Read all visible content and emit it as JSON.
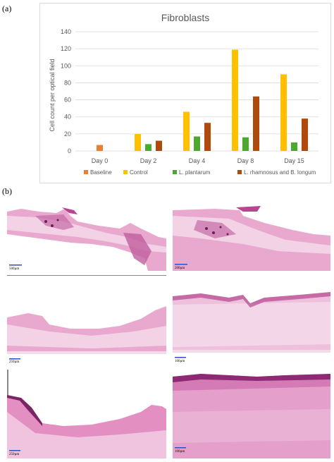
{
  "figure": {
    "panel_a_label": "(a)",
    "panel_b_label": "(b)"
  },
  "chart_data": {
    "type": "bar",
    "title": "Fibroblasts",
    "xlabel": "",
    "ylabel": "Cell count per optical field",
    "categories": [
      "Day 0",
      "Day 2",
      "Day 4",
      "Day 8",
      "Day 15"
    ],
    "ylim": [
      0,
      140
    ],
    "yticks": [
      0,
      20,
      40,
      60,
      80,
      100,
      120,
      140
    ],
    "grid": true,
    "legend_position": "bottom",
    "series": [
      {
        "name": "Baseline",
        "color": "#ed7d31",
        "values": [
          7,
          null,
          null,
          null,
          null
        ]
      },
      {
        "name": "Control",
        "color": "#ffc000",
        "values": [
          null,
          20,
          46,
          119,
          90
        ]
      },
      {
        "name": "L. plantarum",
        "color": "#4ea72e",
        "values": [
          null,
          8,
          17,
          16,
          10
        ]
      },
      {
        "name": "L. rhamnosus and B. longum",
        "color": "#b04a0c",
        "values": [
          null,
          12,
          33,
          64,
          38
        ]
      }
    ]
  },
  "micrographs": [
    {
      "id": "mg1",
      "scale_label": "500µm"
    },
    {
      "id": "mg2",
      "scale_label": "200µm"
    },
    {
      "id": "mg3",
      "scale_label": "250µm"
    },
    {
      "id": "mg4",
      "scale_label": "100µm"
    },
    {
      "id": "mg5",
      "scale_label": "250µm"
    },
    {
      "id": "mg6",
      "scale_label": "100µm"
    }
  ],
  "colors": {
    "tissue_pink": "#e9a9cf",
    "tissue_light": "#f3d2e6",
    "tissue_dark": "#b5468f",
    "scale_bar": "#2a52be"
  }
}
